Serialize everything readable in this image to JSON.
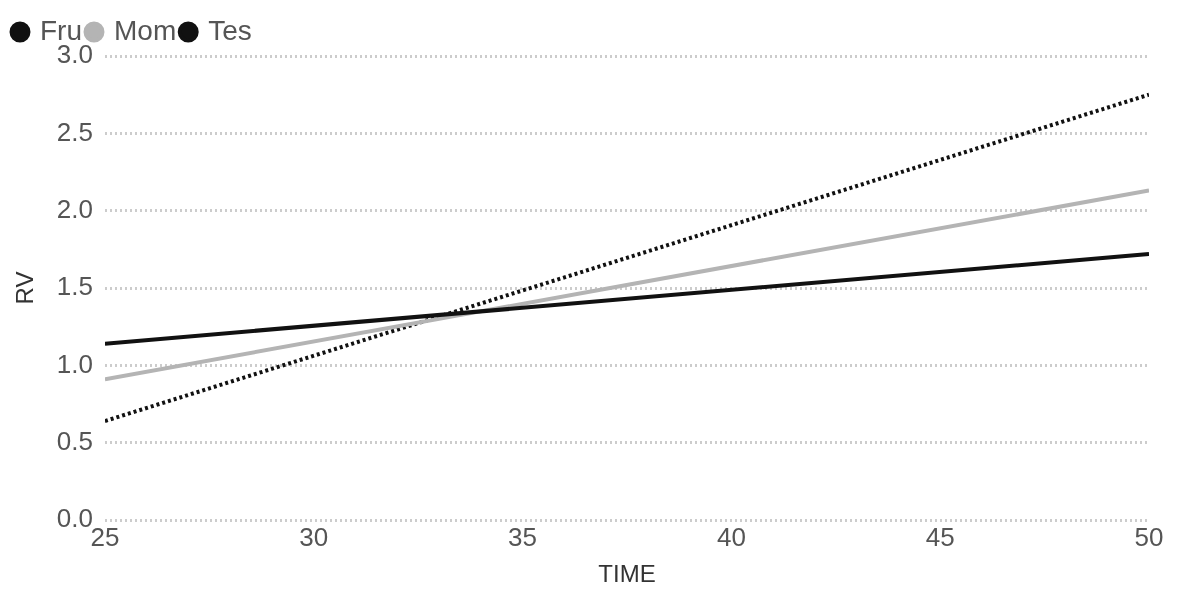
{
  "chart_data": {
    "type": "line",
    "xlabel": "TIME",
    "ylabel": "RV",
    "x": [
      25,
      50
    ],
    "series": [
      {
        "name": "Fru",
        "color": "#111111",
        "values": [
          1.14,
          1.72
        ],
        "line_style": "solid"
      },
      {
        "name": "Mom",
        "color": "#b4b4b4",
        "values": [
          0.91,
          2.13
        ],
        "line_style": "solid"
      },
      {
        "name": "Tes",
        "color": "#111111",
        "values": [
          0.64,
          2.75
        ],
        "line_style": "dotted"
      }
    ],
    "xlim": [
      25,
      50
    ],
    "xticks": [
      25,
      30,
      35,
      40,
      45,
      50
    ],
    "ylim": [
      0,
      3
    ],
    "yticks": [
      {
        "value": 0,
        "label": "0.0"
      },
      0.5,
      {
        "value": 1,
        "label": "1.0"
      },
      1.5,
      {
        "value": 2,
        "label": "2.0"
      },
      2.5,
      {
        "value": 3,
        "label": "3.0"
      }
    ],
    "grid": "y",
    "legend": "top left",
    "marker": "none"
  }
}
